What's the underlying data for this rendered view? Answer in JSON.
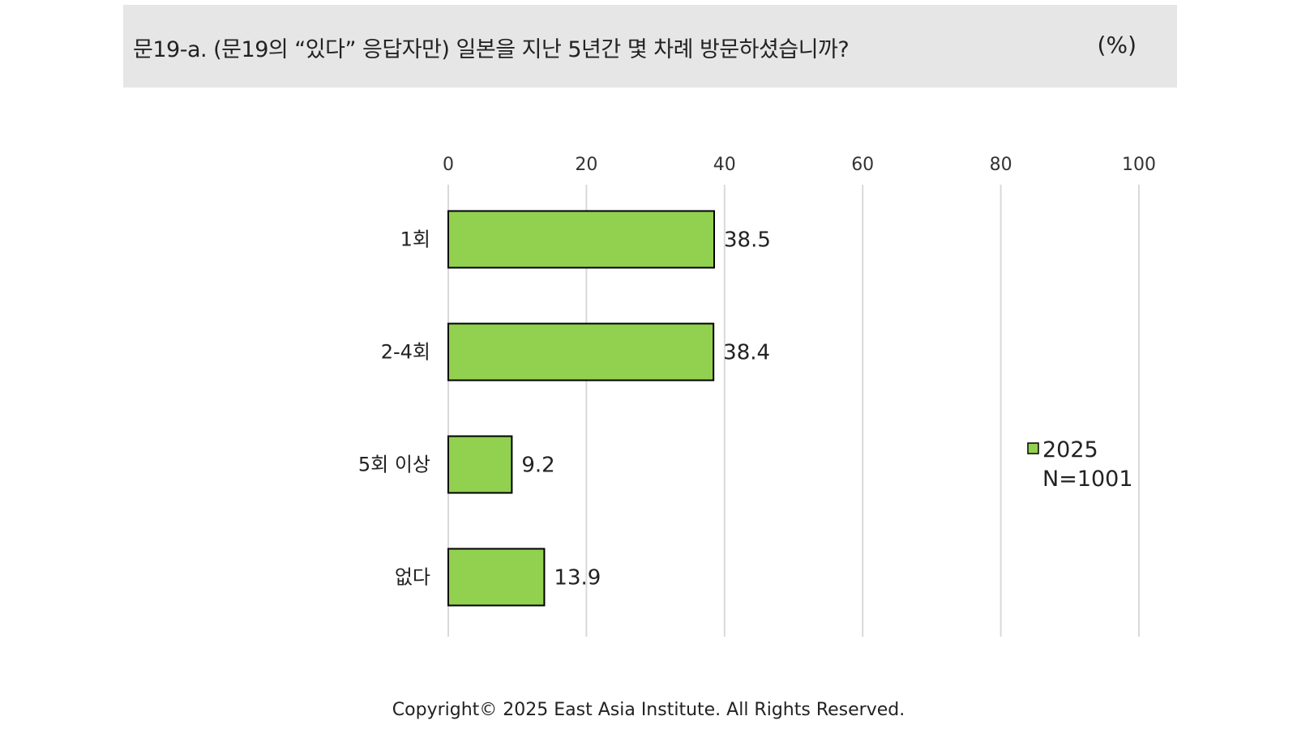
{
  "header": {
    "question": "문19-a. (문19의 “있다” 응답자만) 일본을 지난 5년간 몇 차례 방문하셨습니까?",
    "unit": "(%)"
  },
  "chart_data": {
    "type": "bar",
    "orientation": "horizontal",
    "categories": [
      "1회",
      "2-4회",
      "5회 이상",
      "없다"
    ],
    "series": [
      {
        "name": "2025",
        "values": [
          38.5,
          38.4,
          9.2,
          13.9
        ]
      }
    ],
    "xlim": [
      0,
      100
    ],
    "ticks": [
      "0",
      "20",
      "40",
      "60",
      "80",
      "100"
    ],
    "tick_position": "top",
    "grid": true,
    "legend": {
      "position": "right",
      "entries": [
        "2025"
      ],
      "note": "N=1001"
    },
    "colors": {
      "bar": "#92d050",
      "bar_border": "#000000",
      "grid": "#d9d9d9"
    }
  },
  "footer": {
    "copyright": "Copyright© 2025 East Asia Institute. All Rights Reserved."
  }
}
